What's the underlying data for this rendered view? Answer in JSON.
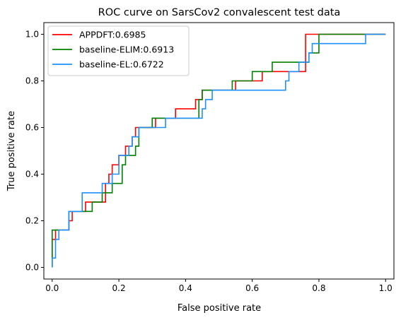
{
  "chart_data": {
    "type": "line",
    "title": "ROC curve on SarsCov2 convalescent test data",
    "xlabel": "False positive rate",
    "ylabel": "True positive rate",
    "xlim": [
      -0.025,
      1.025
    ],
    "ylim": [
      -0.05,
      1.05
    ],
    "xticks": [
      "0.0",
      "0.2",
      "0.4",
      "0.6",
      "0.8",
      "1.0"
    ],
    "yticks": [
      "0.0",
      "0.2",
      "0.4",
      "0.6",
      "0.8",
      "1.0"
    ],
    "grid": false,
    "legend_position": "upper-left",
    "series": [
      {
        "name": "APPDFT:0.6985",
        "color": "#ff0000",
        "x": [
          0.0,
          0.0,
          0.01,
          0.01,
          0.05,
          0.05,
          0.06,
          0.06,
          0.1,
          0.1,
          0.11,
          0.11,
          0.16,
          0.16,
          0.17,
          0.17,
          0.18,
          0.18,
          0.2,
          0.2,
          0.22,
          0.22,
          0.24,
          0.24,
          0.25,
          0.25,
          0.31,
          0.31,
          0.37,
          0.37,
          0.43,
          0.43,
          0.45,
          0.45,
          0.55,
          0.55,
          0.63,
          0.63,
          0.76,
          0.76,
          1.0
        ],
        "y": [
          0.0,
          0.12,
          0.12,
          0.16,
          0.16,
          0.2,
          0.2,
          0.24,
          0.24,
          0.28,
          0.28,
          0.28,
          0.28,
          0.36,
          0.36,
          0.4,
          0.4,
          0.44,
          0.44,
          0.48,
          0.48,
          0.52,
          0.52,
          0.56,
          0.56,
          0.6,
          0.6,
          0.64,
          0.64,
          0.68,
          0.68,
          0.72,
          0.72,
          0.76,
          0.76,
          0.8,
          0.8,
          0.84,
          0.84,
          1.0,
          1.0
        ]
      },
      {
        "name": "baseline-ELIM:0.6913",
        "color": "#008000",
        "x": [
          0.0,
          0.0,
          0.05,
          0.05,
          0.12,
          0.12,
          0.15,
          0.15,
          0.18,
          0.18,
          0.21,
          0.21,
          0.22,
          0.22,
          0.25,
          0.25,
          0.26,
          0.26,
          0.3,
          0.3,
          0.44,
          0.44,
          0.45,
          0.45,
          0.54,
          0.54,
          0.6,
          0.6,
          0.66,
          0.66,
          0.77,
          0.77,
          0.8,
          0.8,
          1.0
        ],
        "y": [
          0.0,
          0.16,
          0.16,
          0.24,
          0.24,
          0.28,
          0.28,
          0.32,
          0.32,
          0.36,
          0.36,
          0.44,
          0.44,
          0.48,
          0.48,
          0.52,
          0.52,
          0.6,
          0.6,
          0.64,
          0.64,
          0.72,
          0.72,
          0.76,
          0.76,
          0.8,
          0.8,
          0.84,
          0.84,
          0.88,
          0.88,
          0.92,
          0.92,
          1.0,
          1.0
        ]
      },
      {
        "name": "baseline-EL:0.6722",
        "color": "#1e90ff",
        "x": [
          0.0,
          0.0,
          0.01,
          0.01,
          0.02,
          0.02,
          0.05,
          0.05,
          0.06,
          0.06,
          0.09,
          0.09,
          0.15,
          0.15,
          0.16,
          0.16,
          0.18,
          0.18,
          0.2,
          0.2,
          0.23,
          0.23,
          0.24,
          0.24,
          0.26,
          0.26,
          0.29,
          0.29,
          0.34,
          0.34,
          0.45,
          0.45,
          0.46,
          0.46,
          0.48,
          0.48,
          0.7,
          0.7,
          0.71,
          0.71,
          0.74,
          0.74,
          0.77,
          0.77,
          0.78,
          0.78,
          0.94,
          0.94,
          1.0
        ],
        "y": [
          0.0,
          0.04,
          0.04,
          0.12,
          0.12,
          0.16,
          0.16,
          0.24,
          0.24,
          0.24,
          0.24,
          0.32,
          0.32,
          0.36,
          0.36,
          0.36,
          0.36,
          0.4,
          0.4,
          0.48,
          0.48,
          0.52,
          0.52,
          0.56,
          0.56,
          0.6,
          0.6,
          0.6,
          0.6,
          0.64,
          0.64,
          0.68,
          0.68,
          0.72,
          0.72,
          0.76,
          0.76,
          0.8,
          0.8,
          0.84,
          0.84,
          0.88,
          0.88,
          0.92,
          0.92,
          0.96,
          0.96,
          1.0,
          1.0
        ]
      }
    ]
  }
}
